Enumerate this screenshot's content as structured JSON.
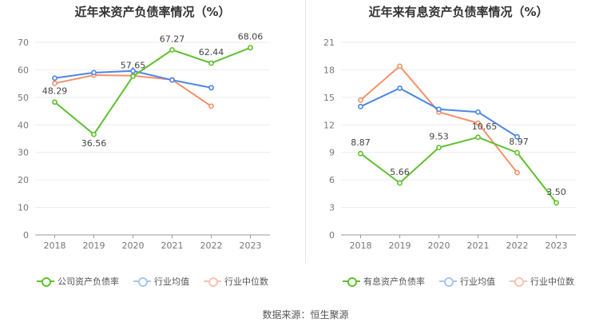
{
  "source": "数据来源：恒生聚源",
  "chart_data": [
    {
      "type": "line",
      "title": "近年来资产负债率情况（%）",
      "categories": [
        "2018",
        "2019",
        "2020",
        "2021",
        "2022",
        "2023"
      ],
      "ylim": [
        0,
        70
      ],
      "yticks": [
        "0",
        "10",
        "20",
        "30",
        "40",
        "50",
        "60",
        "70"
      ],
      "grid": true,
      "legend_position": "bottom",
      "series": [
        {
          "name": "公司资产负债率",
          "color": "#5ec12f",
          "labeled": true,
          "values": [
            48.29,
            36.56,
            57.65,
            67.27,
            62.44,
            68.06
          ],
          "labels": [
            "48.29",
            "36.56",
            "57.65",
            "67.27",
            "62.44",
            "68.06"
          ]
        },
        {
          "name": "行业均值",
          "color": "#4a86e8",
          "labeled": false,
          "values": [
            57.0,
            59.0,
            59.6,
            56.3,
            53.5,
            null
          ]
        },
        {
          "name": "行业中位数",
          "color": "#f4916b",
          "labeled": false,
          "values": [
            55.1,
            58.1,
            57.9,
            56.4,
            46.8,
            null
          ]
        }
      ]
    },
    {
      "type": "line",
      "title": "近年来有息资产负债率情况（%）",
      "categories": [
        "2018",
        "2019",
        "2020",
        "2021",
        "2022",
        "2023"
      ],
      "ylim": [
        0,
        21
      ],
      "yticks": [
        "0",
        "3",
        "6",
        "9",
        "12",
        "15",
        "18",
        "21"
      ],
      "grid": true,
      "legend_position": "bottom",
      "series": [
        {
          "name": "有息资产负债率",
          "color": "#5ec12f",
          "labeled": true,
          "values": [
            8.87,
            5.66,
            9.53,
            10.65,
            8.97,
            3.5
          ],
          "labels": [
            "8.87",
            "5.66",
            "9.53",
            "10.65",
            "8.97",
            "3.50"
          ]
        },
        {
          "name": "行业均值",
          "color": "#4a86e8",
          "labeled": false,
          "values": [
            14.0,
            16.0,
            13.7,
            13.4,
            10.7,
            null
          ]
        },
        {
          "name": "行业中位数",
          "color": "#f4916b",
          "labeled": false,
          "values": [
            14.7,
            18.4,
            13.4,
            12.2,
            6.8,
            null
          ]
        }
      ]
    }
  ]
}
